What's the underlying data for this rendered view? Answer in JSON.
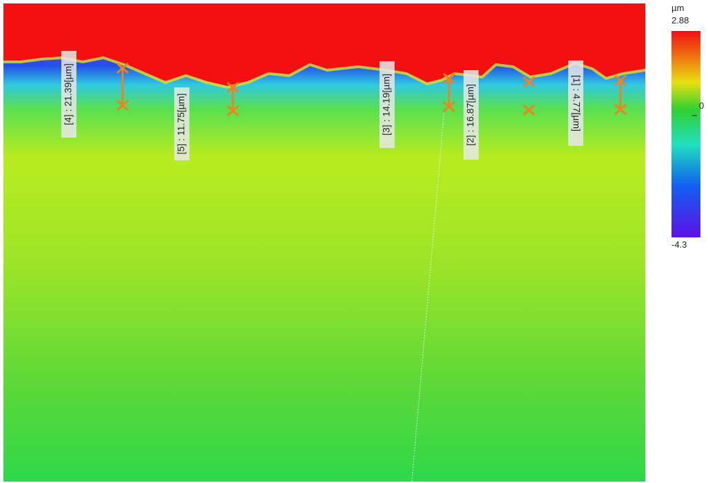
{
  "colorbar": {
    "unit": "µm",
    "max": "2.88",
    "zero": "0",
    "min": "-4.3"
  },
  "measurements": [
    {
      "label": "[4] : 21.39[µm]"
    },
    {
      "label": "[5] : 11.75[µm]"
    },
    {
      "label": "[3] : 14.19[µm]"
    },
    {
      "label": "[2] : 16.87[µm]"
    },
    {
      "label": "[1] : 4.77[µm]"
    }
  ]
}
